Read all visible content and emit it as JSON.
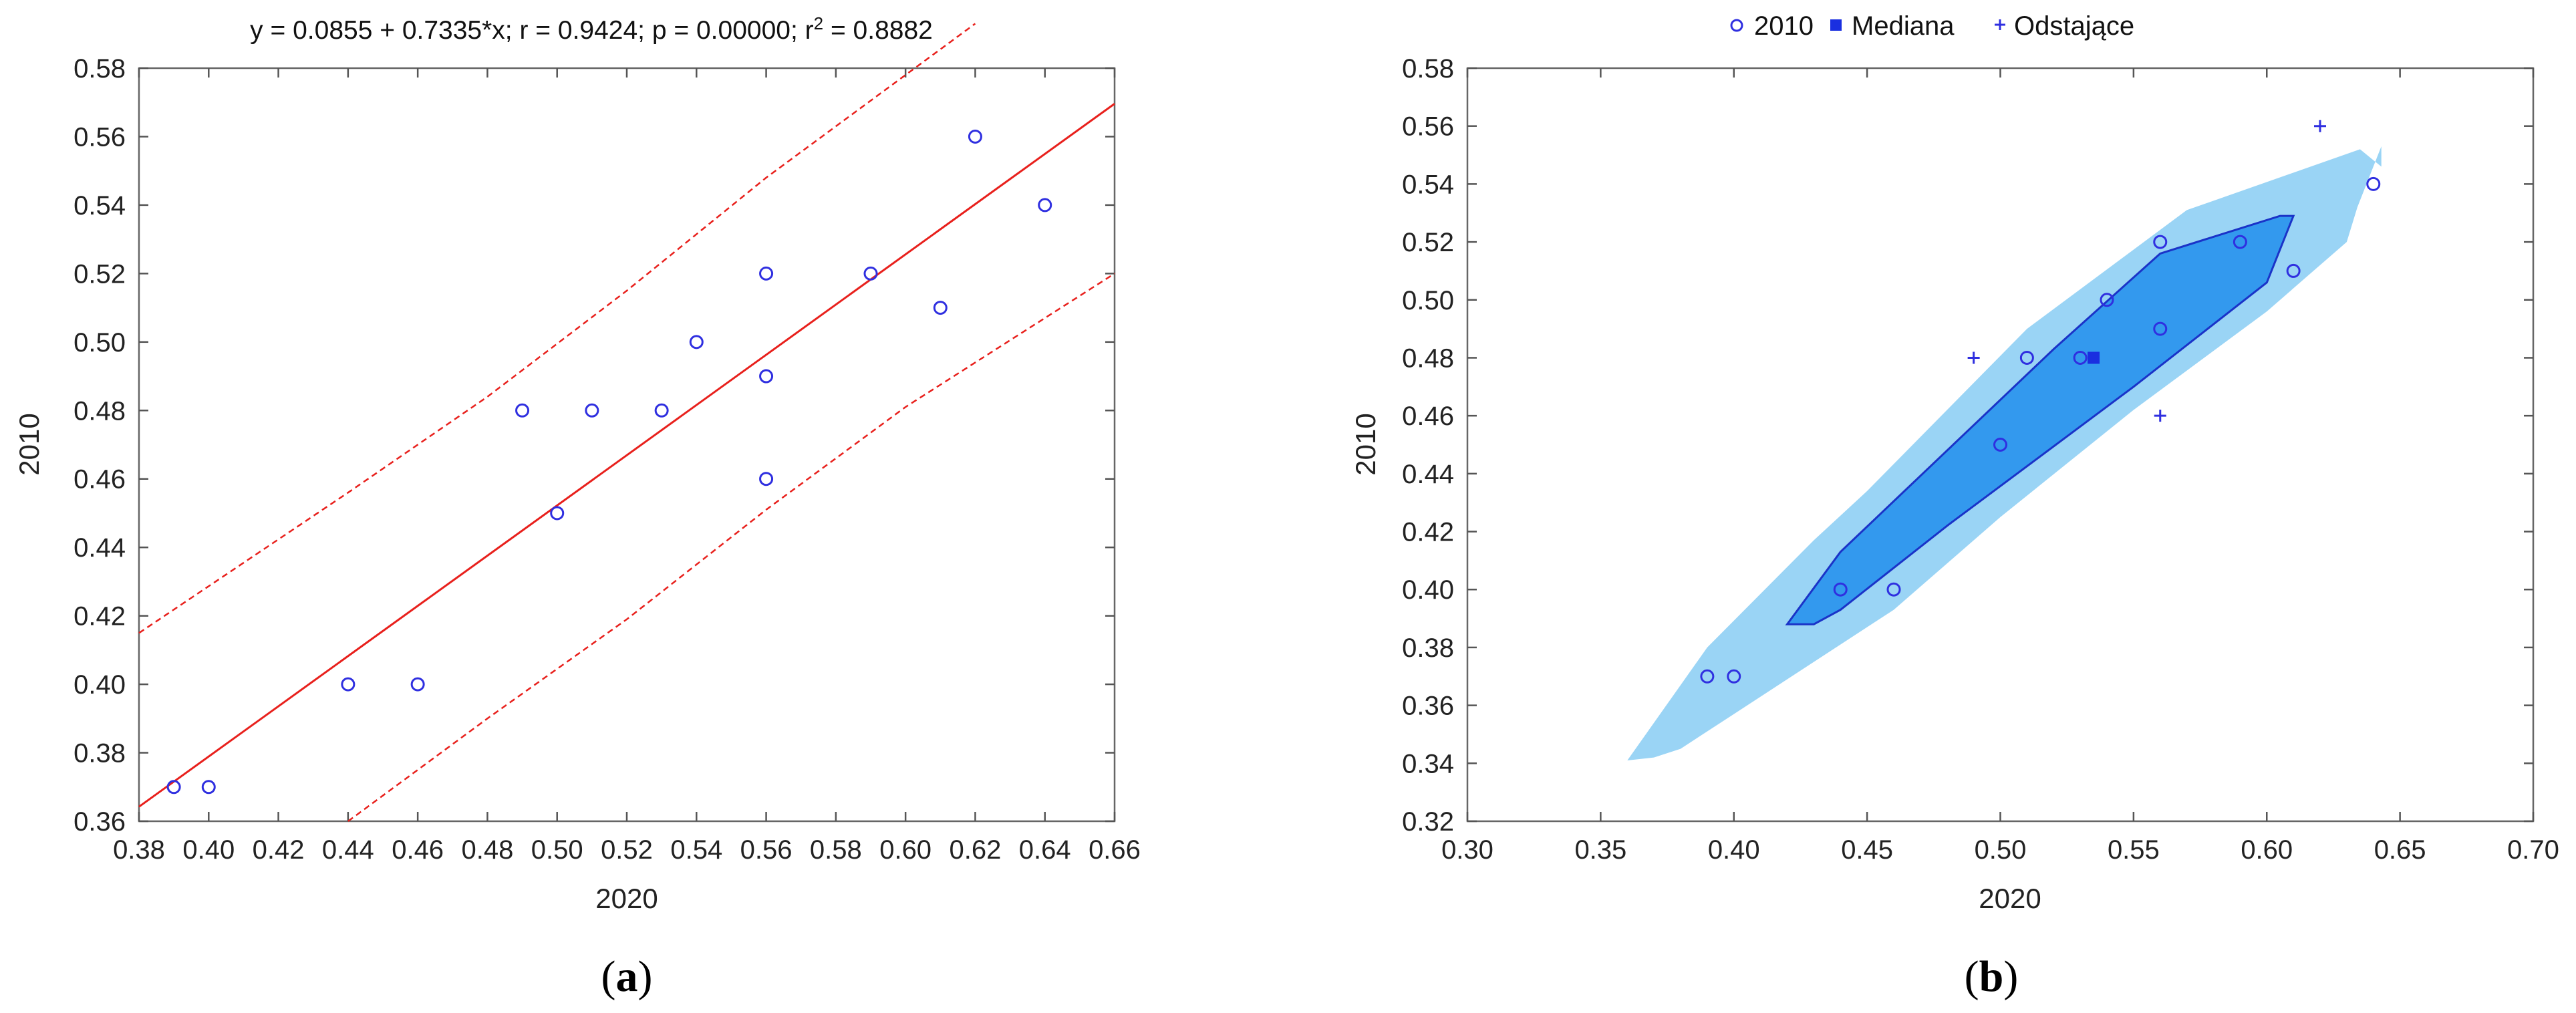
{
  "chart_data": [
    {
      "type": "scatter",
      "panel_label_open": "(",
      "panel_label_letter": "a",
      "panel_label_close": ")",
      "title": "y = 0.0855 + 0.7335*x; r = 0.9424; p = 0.00000; r",
      "title_superscript": "2",
      "title_suffix": " = 0.8882",
      "xlabel": "2020",
      "ylabel": "2010",
      "xlim": [
        0.38,
        0.66
      ],
      "ylim": [
        0.36,
        0.58
      ],
      "xticks": [
        0.38,
        0.4,
        0.42,
        0.44,
        0.46,
        0.48,
        0.5,
        0.52,
        0.54,
        0.56,
        0.58,
        0.6,
        0.62,
        0.64,
        0.66
      ],
      "xtick_labels": [
        "0.38",
        "0.40",
        "0.42",
        "0.44",
        "0.46",
        "0.48",
        "0.50",
        "0.52",
        "0.54",
        "0.56",
        "0.58",
        "0.60",
        "0.62",
        "0.64",
        "0.66"
      ],
      "yticks": [
        0.36,
        0.38,
        0.4,
        0.42,
        0.44,
        0.46,
        0.48,
        0.5,
        0.52,
        0.54,
        0.56,
        0.58
      ],
      "ytick_labels": [
        "0.36",
        "0.38",
        "0.40",
        "0.42",
        "0.44",
        "0.46",
        "0.48",
        "0.50",
        "0.52",
        "0.54",
        "0.56",
        "0.58"
      ],
      "grid": false,
      "points": [
        {
          "x": 0.39,
          "y": 0.37
        },
        {
          "x": 0.4,
          "y": 0.37
        },
        {
          "x": 0.44,
          "y": 0.4
        },
        {
          "x": 0.46,
          "y": 0.4
        },
        {
          "x": 0.49,
          "y": 0.48
        },
        {
          "x": 0.5,
          "y": 0.45
        },
        {
          "x": 0.51,
          "y": 0.48
        },
        {
          "x": 0.53,
          "y": 0.48
        },
        {
          "x": 0.54,
          "y": 0.5
        },
        {
          "x": 0.56,
          "y": 0.52
        },
        {
          "x": 0.56,
          "y": 0.49
        },
        {
          "x": 0.56,
          "y": 0.46
        },
        {
          "x": 0.59,
          "y": 0.52
        },
        {
          "x": 0.61,
          "y": 0.51
        },
        {
          "x": 0.62,
          "y": 0.56
        },
        {
          "x": 0.64,
          "y": 0.54
        }
      ],
      "regression": {
        "intercept": 0.0855,
        "slope": 0.7335
      },
      "confidence_band": {
        "upper": [
          {
            "x": 0.38,
            "y": 0.415
          },
          {
            "x": 0.44,
            "y": 0.456
          },
          {
            "x": 0.48,
            "y": 0.484
          },
          {
            "x": 0.52,
            "y": 0.515
          },
          {
            "x": 0.56,
            "y": 0.548
          },
          {
            "x": 0.6,
            "y": 0.578
          },
          {
            "x": 0.62,
            "y": 0.593
          }
        ],
        "lower": [
          {
            "x": 0.44,
            "y": 0.36
          },
          {
            "x": 0.48,
            "y": 0.39
          },
          {
            "x": 0.52,
            "y": 0.419
          },
          {
            "x": 0.56,
            "y": 0.451
          },
          {
            "x": 0.6,
            "y": 0.481
          },
          {
            "x": 0.66,
            "y": 0.52
          }
        ]
      },
      "colors": {
        "points": "#2f2fe0",
        "fit": "#e8201c"
      }
    },
    {
      "type": "scatter",
      "panel_label_open": "(",
      "panel_label_letter": "b",
      "panel_label_close": ")",
      "xlabel": "2020",
      "ylabel": "2010",
      "xlim": [
        0.3,
        0.7
      ],
      "ylim": [
        0.32,
        0.58
      ],
      "xticks": [
        0.3,
        0.35,
        0.4,
        0.45,
        0.5,
        0.55,
        0.6,
        0.65,
        0.7
      ],
      "xtick_labels": [
        "0.30",
        "0.35",
        "0.40",
        "0.45",
        "0.50",
        "0.55",
        "0.60",
        "0.65",
        "0.70"
      ],
      "yticks": [
        0.32,
        0.34,
        0.36,
        0.38,
        0.4,
        0.42,
        0.44,
        0.46,
        0.48,
        0.5,
        0.52,
        0.54,
        0.56,
        0.58
      ],
      "ytick_labels": [
        "0.32",
        "0.34",
        "0.36",
        "0.38",
        "0.40",
        "0.42",
        "0.44",
        "0.46",
        "0.48",
        "0.50",
        "0.52",
        "0.54",
        "0.56",
        "0.58"
      ],
      "grid": false,
      "legend_position": "top",
      "legend": [
        {
          "label": "2010",
          "marker": "circle"
        },
        {
          "label": "Mediana",
          "marker": "square"
        },
        {
          "label": "Odstające",
          "marker": "plus"
        }
      ],
      "points": [
        {
          "x": 0.39,
          "y": 0.37
        },
        {
          "x": 0.4,
          "y": 0.37
        },
        {
          "x": 0.44,
          "y": 0.4
        },
        {
          "x": 0.46,
          "y": 0.4
        },
        {
          "x": 0.5,
          "y": 0.45
        },
        {
          "x": 0.51,
          "y": 0.48
        },
        {
          "x": 0.53,
          "y": 0.48
        },
        {
          "x": 0.54,
          "y": 0.5
        },
        {
          "x": 0.56,
          "y": 0.52
        },
        {
          "x": 0.56,
          "y": 0.49
        },
        {
          "x": 0.59,
          "y": 0.52
        },
        {
          "x": 0.61,
          "y": 0.51
        },
        {
          "x": 0.64,
          "y": 0.54
        }
      ],
      "median": {
        "x": 0.535,
        "y": 0.48
      },
      "outliers": [
        {
          "x": 0.49,
          "y": 0.48
        },
        {
          "x": 0.56,
          "y": 0.46
        },
        {
          "x": 0.62,
          "y": 0.56
        }
      ],
      "outer_hull": [
        {
          "x": 0.36,
          "y": 0.341
        },
        {
          "x": 0.37,
          "y": 0.342
        },
        {
          "x": 0.38,
          "y": 0.345
        },
        {
          "x": 0.4,
          "y": 0.357
        },
        {
          "x": 0.46,
          "y": 0.393
        },
        {
          "x": 0.5,
          "y": 0.425
        },
        {
          "x": 0.55,
          "y": 0.462
        },
        {
          "x": 0.6,
          "y": 0.496
        },
        {
          "x": 0.63,
          "y": 0.52
        },
        {
          "x": 0.634,
          "y": 0.532
        },
        {
          "x": 0.643,
          "y": 0.553
        },
        {
          "x": 0.643,
          "y": 0.546
        },
        {
          "x": 0.635,
          "y": 0.552
        },
        {
          "x": 0.57,
          "y": 0.531
        },
        {
          "x": 0.51,
          "y": 0.49
        },
        {
          "x": 0.45,
          "y": 0.434
        },
        {
          "x": 0.43,
          "y": 0.417
        },
        {
          "x": 0.39,
          "y": 0.38
        }
      ],
      "inner_hull": [
        {
          "x": 0.42,
          "y": 0.388
        },
        {
          "x": 0.43,
          "y": 0.388
        },
        {
          "x": 0.44,
          "y": 0.393
        },
        {
          "x": 0.48,
          "y": 0.422
        },
        {
          "x": 0.55,
          "y": 0.47
        },
        {
          "x": 0.6,
          "y": 0.506
        },
        {
          "x": 0.61,
          "y": 0.529
        },
        {
          "x": 0.605,
          "y": 0.529
        },
        {
          "x": 0.56,
          "y": 0.516
        },
        {
          "x": 0.52,
          "y": 0.483
        },
        {
          "x": 0.48,
          "y": 0.448
        },
        {
          "x": 0.44,
          "y": 0.413
        }
      ],
      "colors": {
        "points": "#2f2fe0",
        "inner": "#3399ee",
        "inner_edge": "#1a33c8",
        "outer": "#9ad4f5",
        "median": "#1a2fe0"
      }
    }
  ]
}
